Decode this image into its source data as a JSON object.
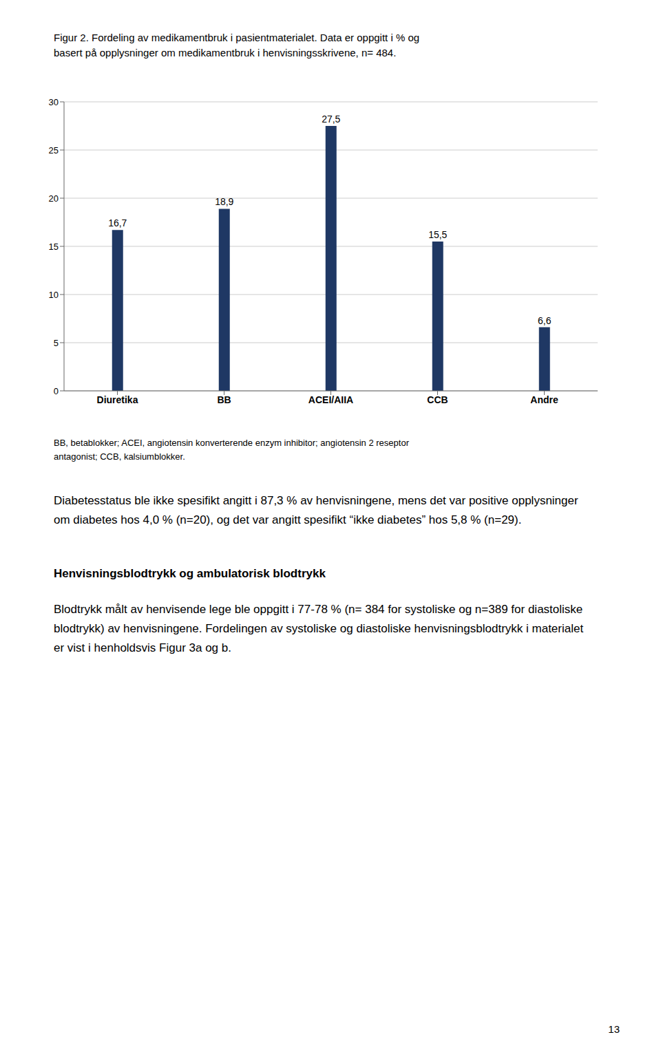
{
  "chart_data": {
    "type": "bar",
    "title": "Figur 2. Fordeling av medikamentbruk i pasientmaterialet. Data er oppgitt i % og basert på opplysninger om medikamentbruk i henvisningsskrivene, n= 484.",
    "categories": [
      "Diuretika",
      "BB",
      "ACEI/AIIA",
      "CCB",
      "Andre"
    ],
    "values": [
      16.7,
      18.9,
      27.5,
      15.5,
      6.6
    ],
    "value_labels": [
      "16,7",
      "18,9",
      "27,5",
      "15,5",
      "6,6"
    ],
    "data_labels": true,
    "color": "#1F3864",
    "ylim": [
      0,
      30
    ],
    "yticks": [
      0,
      5,
      10,
      15,
      20,
      25,
      30
    ],
    "grid": true,
    "annotations": [
      "BB, betablokker; ACEI, angiotensin konverterende enzym inhibitor; angiotensin 2 reseptor antagonist; CCB, kalsiumblokker.",
      "Diabetesstatus ble ikke spesifikt angitt i 87,3 % av henvisningene, mens det var positive opplysninger om diabetes hos 4,0 % (n=20), og det var angitt spesifikt “ikke diabetes” hos 5,8 % (n=29).",
      "Henvisningsblodtrykk og ambulatorisk blodtrykk",
      "Blodtrykk målt av henvisende lege ble oppgitt i 77-78 % (n= 384 for systoliske og n=389 for diastoliske blodtrykk) av henvisningene. Fordelingen av systoliske og diastoliske henvisningsblodtrykk i materialet er vist i henholdsvis Figur 3a og b.",
      "13"
    ]
  }
}
